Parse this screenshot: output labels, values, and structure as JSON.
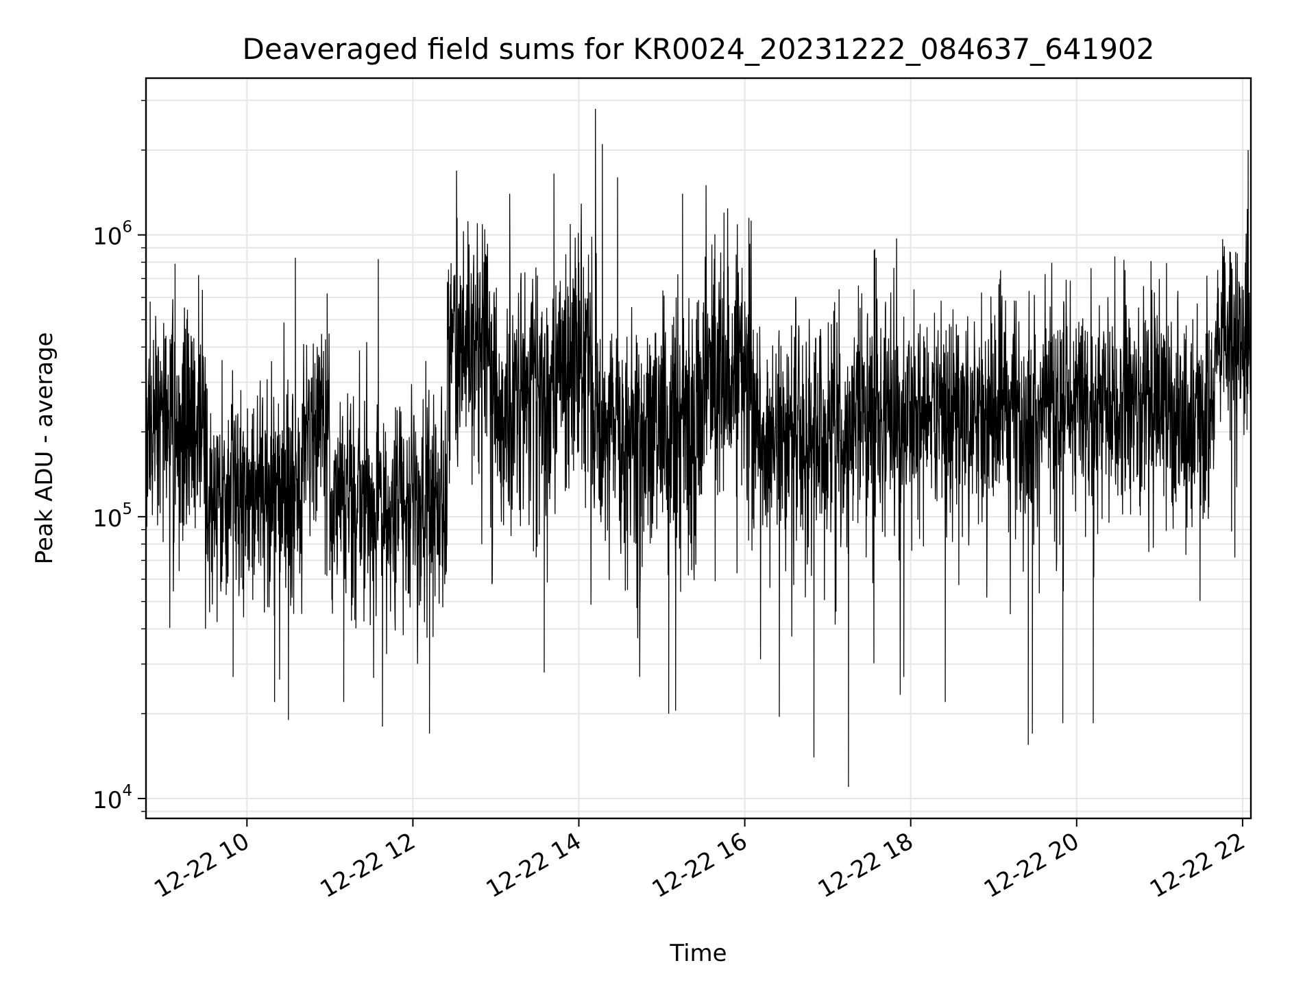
{
  "chart_data": {
    "type": "line",
    "title": "Deaveraged field sums for KR0024_20231222_084637_641902",
    "xlabel": "Time",
    "ylabel": "Peak ADU - average",
    "x_scale": "time",
    "y_scale": "log",
    "xlim": [
      "2023-12-22 08:47",
      "2023-12-22 22:06"
    ],
    "ylim": [
      8500,
      3600000
    ],
    "grid": true,
    "x_ticks": [
      {
        "value": "2023-12-22 10:00",
        "label": "12-22 10"
      },
      {
        "value": "2023-12-22 12:00",
        "label": "12-22 12"
      },
      {
        "value": "2023-12-22 14:00",
        "label": "12-22 14"
      },
      {
        "value": "2023-12-22 16:00",
        "label": "12-22 16"
      },
      {
        "value": "2023-12-22 18:00",
        "label": "12-22 18"
      },
      {
        "value": "2023-12-22 20:00",
        "label": "12-22 20"
      },
      {
        "value": "2023-12-22 22:00",
        "label": "12-22 22"
      }
    ],
    "y_ticks": [
      {
        "value": 10000,
        "base": "10",
        "exp": "4"
      },
      {
        "value": 100000,
        "base": "10",
        "exp": "5"
      },
      {
        "value": 1000000,
        "base": "10",
        "exp": "6"
      }
    ],
    "series_color": "#000000",
    "series": [
      {
        "segments": [
          {
            "start": "2023-12-22 08:47",
            "end": "2023-12-22 09:30",
            "median": 220000,
            "spread": 0.33
          },
          {
            "start": "2023-12-22 09:30",
            "end": "2023-12-22 10:40",
            "median": 125000,
            "spread": 0.33
          },
          {
            "start": "2023-12-22 10:40",
            "end": "2023-12-22 11:00",
            "median": 200000,
            "spread": 0.3
          },
          {
            "start": "2023-12-22 11:00",
            "end": "2023-12-22 12:25",
            "median": 115000,
            "spread": 0.3
          },
          {
            "start": "2023-12-22 12:25",
            "end": "2023-12-22 12:55",
            "median": 440000,
            "spread": 0.32
          },
          {
            "start": "2023-12-22 12:55",
            "end": "2023-12-22 13:40",
            "median": 260000,
            "spread": 0.38
          },
          {
            "start": "2023-12-22 13:40",
            "end": "2023-12-22 14:10",
            "median": 380000,
            "spread": 0.36
          },
          {
            "start": "2023-12-22 14:10",
            "end": "2023-12-22 15:30",
            "median": 190000,
            "spread": 0.36
          },
          {
            "start": "2023-12-22 15:30",
            "end": "2023-12-22 16:05",
            "median": 350000,
            "spread": 0.36
          },
          {
            "start": "2023-12-22 16:05",
            "end": "2023-12-22 17:20",
            "median": 190000,
            "spread": 0.34
          },
          {
            "start": "2023-12-22 17:20",
            "end": "2023-12-22 19:00",
            "median": 230000,
            "spread": 0.32
          },
          {
            "start": "2023-12-22 19:00",
            "end": "2023-12-22 21:40",
            "median": 245000,
            "spread": 0.32
          },
          {
            "start": "2023-12-22 21:40",
            "end": "2023-12-22 22:06",
            "median": 430000,
            "spread": 0.3
          }
        ],
        "peaks": [
          {
            "x": "2023-12-22 08:50",
            "y": 580000
          },
          {
            "x": "2023-12-22 09:08",
            "y": 790000
          },
          {
            "x": "2023-12-22 09:25",
            "y": 720000
          },
          {
            "x": "2023-12-22 10:35",
            "y": 830000
          },
          {
            "x": "2023-12-22 10:58",
            "y": 620000
          },
          {
            "x": "2023-12-22 11:35",
            "y": 820000
          },
          {
            "x": "2023-12-22 12:32",
            "y": 1150000
          },
          {
            "x": "2023-12-22 13:10",
            "y": 1400000
          },
          {
            "x": "2023-12-22 13:42",
            "y": 1650000
          },
          {
            "x": "2023-12-22 14:12",
            "y": 2800000
          },
          {
            "x": "2023-12-22 14:17",
            "y": 2100000
          },
          {
            "x": "2023-12-22 14:28",
            "y": 1600000
          },
          {
            "x": "2023-12-22 15:15",
            "y": 1400000
          },
          {
            "x": "2023-12-22 15:32",
            "y": 1500000
          },
          {
            "x": "2023-12-22 15:45",
            "y": 1200000
          },
          {
            "x": "2023-12-22 16:03",
            "y": 1150000
          },
          {
            "x": "2023-12-22 17:35",
            "y": 830000
          },
          {
            "x": "2023-12-22 20:35",
            "y": 750000
          },
          {
            "x": "2023-12-22 21:55",
            "y": 870000
          },
          {
            "x": "2023-12-22 22:04",
            "y": 2000000
          }
        ],
        "dips": [
          {
            "x": "2023-12-22 09:50",
            "y": 27000
          },
          {
            "x": "2023-12-22 10:20",
            "y": 22000
          },
          {
            "x": "2023-12-22 10:30",
            "y": 19000
          },
          {
            "x": "2023-12-22 11:10",
            "y": 22000
          },
          {
            "x": "2023-12-22 11:38",
            "y": 18000
          },
          {
            "x": "2023-12-22 12:12",
            "y": 17000
          },
          {
            "x": "2023-12-22 13:35",
            "y": 28000
          },
          {
            "x": "2023-12-22 15:05",
            "y": 20000
          },
          {
            "x": "2023-12-22 15:10",
            "y": 20500
          },
          {
            "x": "2023-12-22 16:25",
            "y": 19500
          },
          {
            "x": "2023-12-22 16:50",
            "y": 14000
          },
          {
            "x": "2023-12-22 17:15",
            "y": 11000
          },
          {
            "x": "2023-12-22 17:55",
            "y": 27000
          },
          {
            "x": "2023-12-22 18:25",
            "y": 22000
          },
          {
            "x": "2023-12-22 19:25",
            "y": 15500
          },
          {
            "x": "2023-12-22 19:28",
            "y": 17000
          },
          {
            "x": "2023-12-22 19:50",
            "y": 18500
          },
          {
            "x": "2023-12-22 20:12",
            "y": 18500
          }
        ]
      }
    ]
  }
}
